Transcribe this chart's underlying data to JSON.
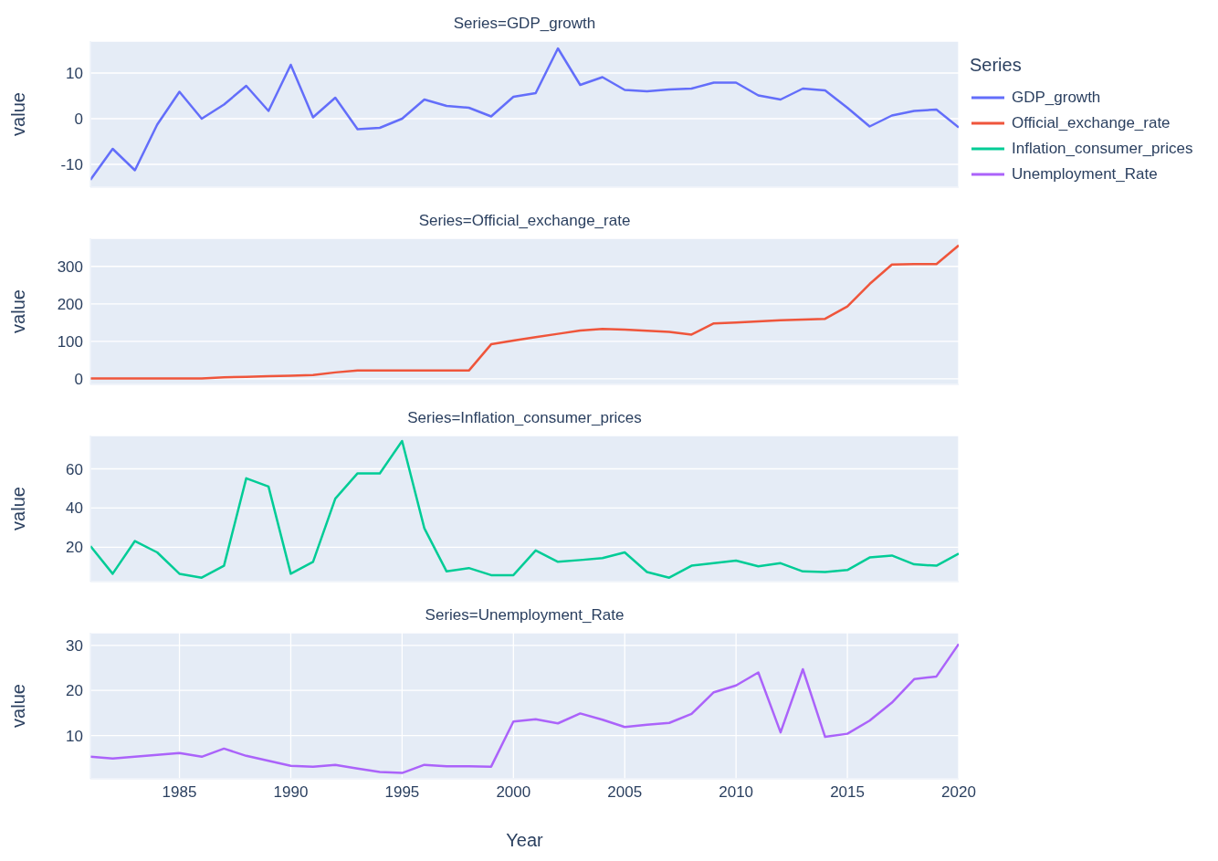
{
  "chart_data": [
    {
      "type": "line",
      "title": "Series=GDP_growth",
      "ylabel": "value",
      "legend_title": "Series",
      "legend": "top right",
      "grid": true,
      "tick_labels": "y",
      "xlim": [
        1981,
        2020
      ],
      "xticks": [
        1985,
        1990,
        1995,
        2000,
        2005,
        2010,
        2015,
        2020
      ],
      "ylim": [
        -15,
        17
      ],
      "yticks": [
        -10,
        0,
        10
      ],
      "x": [
        1981,
        1982,
        1983,
        1984,
        1985,
        1986,
        1987,
        1988,
        1989,
        1990,
        1991,
        1992,
        1993,
        1994,
        1995,
        1996,
        1997,
        1998,
        1999,
        2000,
        2001,
        2002,
        2003,
        2004,
        2005,
        2006,
        2007,
        2008,
        2009,
        2010,
        2011,
        2012,
        2013,
        2014,
        2015,
        2016,
        2017,
        2018,
        2019,
        2020
      ],
      "series": [
        {
          "name": "GDP_growth",
          "color": "#636efa",
          "values": [
            -13.4,
            -6.6,
            -11.3,
            -1.3,
            5.9,
            0,
            3.1,
            7.2,
            1.7,
            11.8,
            0.3,
            4.6,
            -2.3,
            -2,
            0,
            4.2,
            2.8,
            2.4,
            0.5,
            4.8,
            5.6,
            15.4,
            7.4,
            9.1,
            6.3,
            6,
            6.4,
            6.6,
            7.9,
            7.9,
            5.1,
            4.2,
            6.6,
            6.2,
            2.4,
            -1.7,
            0.7,
            1.7,
            2,
            -1.9
          ]
        }
      ]
    },
    {
      "type": "line",
      "title": "Series=Official_exchange_rate",
      "ylabel": "value",
      "legend": "top right",
      "grid": true,
      "tick_labels": "y",
      "xlim": [
        1981,
        2020
      ],
      "xticks": [
        1985,
        1990,
        1995,
        2000,
        2005,
        2010,
        2015,
        2020
      ],
      "ylim": [
        -15,
        375
      ],
      "yticks": [
        0,
        100,
        200,
        300
      ],
      "x": [
        1981,
        1982,
        1983,
        1984,
        1985,
        1986,
        1987,
        1988,
        1989,
        1990,
        1991,
        1992,
        1993,
        1994,
        1995,
        1996,
        1997,
        1998,
        1999,
        2000,
        2001,
        2002,
        2003,
        2004,
        2005,
        2006,
        2007,
        2008,
        2009,
        2010,
        2011,
        2012,
        2013,
        2014,
        2015,
        2016,
        2017,
        2018,
        2019,
        2020
      ],
      "series": [
        {
          "name": "Official_exchange_rate",
          "color": "#ef553b",
          "values": [
            1,
            1,
            1,
            1,
            1,
            1,
            4,
            5,
            7,
            8,
            10,
            17,
            22,
            22,
            22,
            22,
            22,
            22,
            92,
            102,
            111,
            120,
            129,
            133,
            131,
            128,
            125,
            118,
            148,
            150,
            153,
            156,
            158,
            160,
            193,
            253,
            305,
            306,
            306,
            356
          ]
        }
      ]
    },
    {
      "type": "line",
      "title": "Series=Inflation_consumer_prices",
      "ylabel": "value",
      "legend": "top right",
      "grid": true,
      "tick_labels": "y",
      "xlim": [
        1981,
        2020
      ],
      "xticks": [
        1985,
        1990,
        1995,
        2000,
        2005,
        2010,
        2015,
        2020
      ],
      "ylim": [
        2.5,
        77
      ],
      "yticks": [
        20,
        40,
        60
      ],
      "x": [
        1981,
        1982,
        1983,
        1984,
        1985,
        1986,
        1987,
        1988,
        1989,
        1990,
        1991,
        1992,
        1993,
        1994,
        1995,
        1996,
        1997,
        1998,
        1999,
        2000,
        2001,
        2002,
        2003,
        2004,
        2005,
        2006,
        2007,
        2008,
        2009,
        2010,
        2011,
        2012,
        2013,
        2014,
        2015,
        2016,
        2017,
        2018,
        2019,
        2020
      ],
      "series": [
        {
          "name": "Inflation_consumer_prices",
          "color": "#00cc96",
          "values": [
            20.6,
            6.5,
            23.2,
            17.4,
            6.5,
            4.5,
            10.6,
            55.2,
            51,
            6.5,
            12.6,
            44.8,
            57.7,
            57.7,
            74.2,
            29.7,
            7.7,
            9.4,
            5.8,
            5.8,
            18.4,
            12.6,
            13.5,
            14.5,
            17.4,
            7.4,
            4.5,
            10.6,
            11.9,
            13.2,
            10.3,
            11.9,
            7.7,
            7.4,
            8.4,
            14.8,
            15.8,
            11.3,
            10.6,
            16.8
          ]
        }
      ]
    },
    {
      "type": "line",
      "title": "Series=Unemployment_Rate",
      "ylabel": "value",
      "xlabel": "Year",
      "legend": "top right",
      "grid": true,
      "xlim": [
        1981,
        2020
      ],
      "xticks": [
        1985,
        1990,
        1995,
        2000,
        2005,
        2010,
        2015,
        2020
      ],
      "ylim": [
        0.4,
        32.8
      ],
      "yticks": [
        10,
        20,
        30
      ],
      "x": [
        1981,
        1982,
        1983,
        1984,
        1985,
        1986,
        1987,
        1988,
        1989,
        1990,
        1991,
        1992,
        1993,
        1994,
        1995,
        1996,
        1997,
        1998,
        1999,
        2000,
        2001,
        2002,
        2003,
        2004,
        2005,
        2006,
        2007,
        2008,
        2009,
        2010,
        2011,
        2012,
        2013,
        2014,
        2015,
        2016,
        2017,
        2018,
        2019,
        2020
      ],
      "series": [
        {
          "name": "Unemployment_Rate",
          "color": "#ab63fa",
          "values": [
            5.3,
            4.9,
            5.3,
            5.7,
            6.1,
            5.3,
            7.1,
            5.5,
            4.4,
            3.3,
            3.1,
            3.5,
            2.7,
            1.9,
            1.7,
            3.5,
            3.2,
            3.2,
            3.1,
            13.1,
            13.6,
            12.7,
            14.9,
            13.5,
            11.9,
            12.4,
            12.8,
            14.8,
            19.6,
            21.1,
            24,
            10.7,
            24.7,
            9.7,
            10.4,
            13.3,
            17.3,
            22.5,
            23.1,
            30.3
          ]
        }
      ]
    }
  ]
}
